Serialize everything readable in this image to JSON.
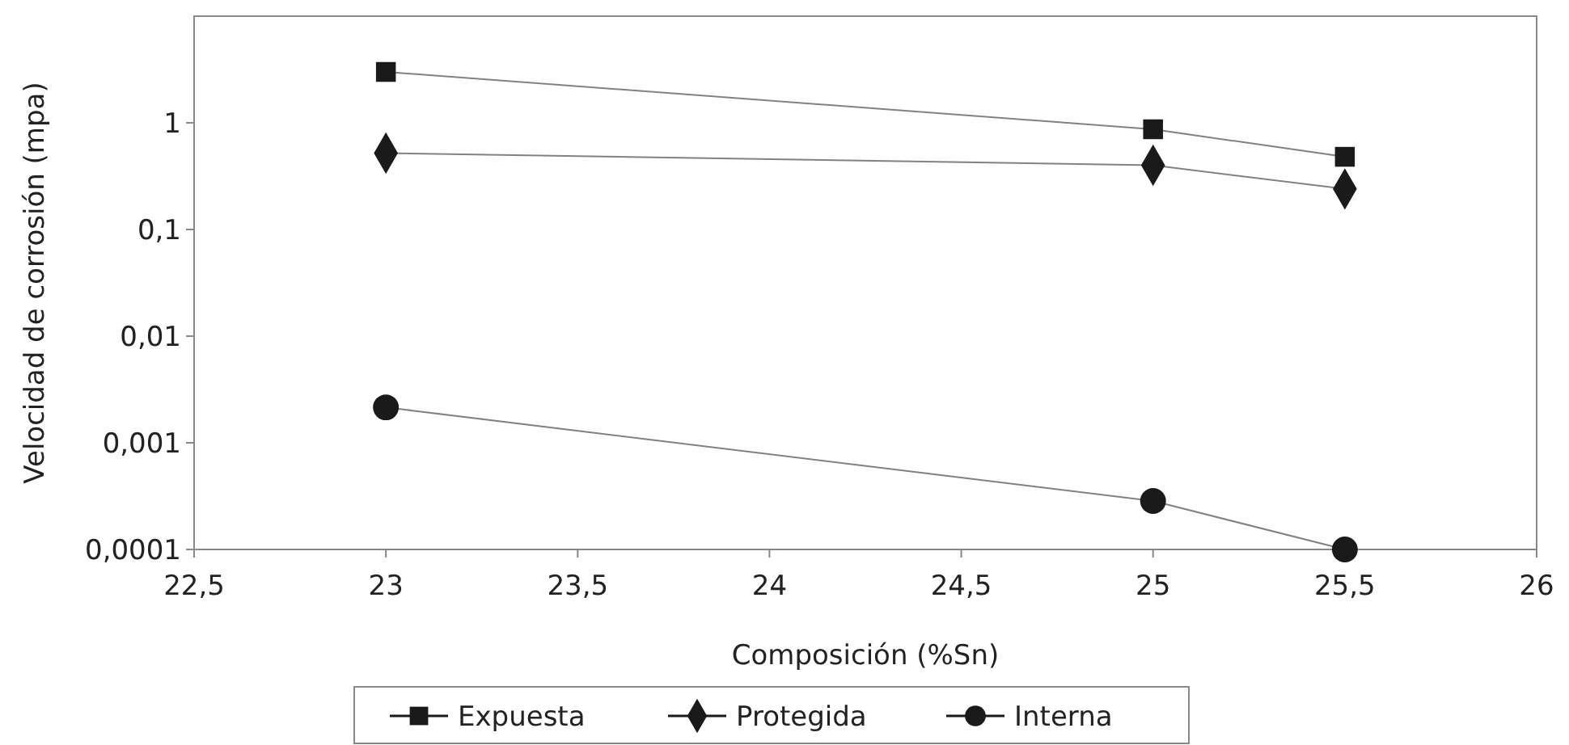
{
  "chart_data": {
    "type": "line",
    "xlabel": "Composición (%Sn)",
    "ylabel": "Velocidad de corrosión (mpa)",
    "log": "y",
    "xlim": [
      22.5,
      26
    ],
    "ylim": [
      0.0001,
      10
    ],
    "xticks": [
      {
        "value": 22.5,
        "label": "22,5"
      },
      23,
      {
        "value": 23.5,
        "label": "23,5"
      },
      24,
      {
        "value": 24.5,
        "label": "24,5"
      },
      25,
      {
        "value": 25.5,
        "label": "25,5"
      },
      26
    ],
    "yticks": [
      {
        "value": 0.0001,
        "label": "0,0001"
      },
      {
        "value": 0.001,
        "label": "0,001"
      },
      {
        "value": 0.01,
        "label": "0,01"
      },
      {
        "value": 0.1,
        "label": "0,1"
      },
      1
    ],
    "grid": false,
    "legend": "bottom",
    "x": [
      23,
      25,
      25.5
    ],
    "series": [
      {
        "name": "Expuesta",
        "color": "#1a1a1a",
        "marker": "square",
        "values": [
          3,
          0.87,
          0.48
        ]
      },
      {
        "name": "Protegida",
        "color": "#1a1a1a",
        "marker": "diamond",
        "values": [
          0.52,
          0.4,
          0.24
        ]
      },
      {
        "name": "Interna",
        "color": "#1a1a1a",
        "marker": "circle",
        "values": [
          0.00215,
          0.000285,
          0.0001
        ]
      }
    ]
  }
}
